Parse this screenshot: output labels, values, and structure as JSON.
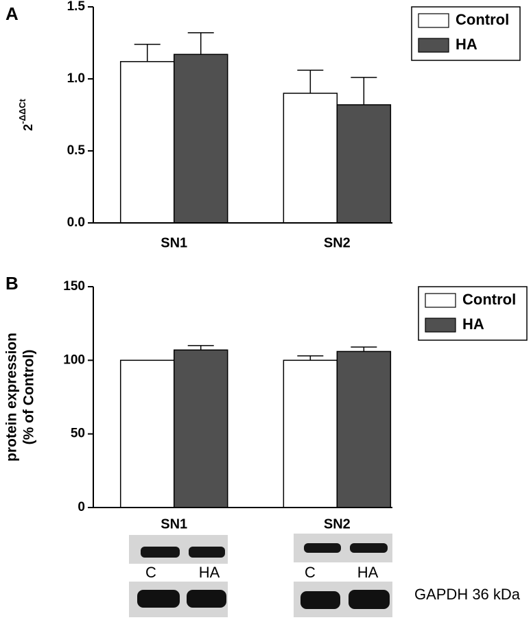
{
  "chart_data": [
    {
      "type": "bar",
      "panel": "A",
      "ylabel": "2",
      "ylabel_superscript": "-ΔΔCt",
      "categories": [
        "SN1",
        "SN2"
      ],
      "series": [
        {
          "name": "Control",
          "color": "#ffffff",
          "values": [
            1.12,
            0.9
          ],
          "errors": [
            0.12,
            0.16
          ]
        },
        {
          "name": "HA",
          "color": "#505050",
          "values": [
            1.17,
            0.82
          ],
          "errors": [
            0.15,
            0.19
          ]
        }
      ],
      "ylim": [
        0,
        1.5
      ],
      "yticks": [
        {
          "value": 0,
          "label": "0.0"
        },
        0.5,
        {
          "value": 1,
          "label": "1.0"
        },
        1.5
      ],
      "legend": "upper right"
    },
    {
      "type": "bar",
      "panel": "B",
      "ylabel": [
        "protein expression",
        "(% of Control)"
      ],
      "categories": [
        "SN1",
        "SN2"
      ],
      "series": [
        {
          "name": "Control",
          "color": "#ffffff",
          "values": [
            100,
            100
          ],
          "errors": [
            null,
            3
          ]
        },
        {
          "name": "HA",
          "color": "#505050",
          "values": [
            107,
            106
          ],
          "errors": [
            3,
            3
          ]
        }
      ],
      "ylim": [
        0,
        150
      ],
      "yticks": [
        0,
        50,
        100,
        150
      ],
      "legend": "upper right"
    }
  ],
  "blots": {
    "lanes": [
      "C",
      "HA",
      "C",
      "HA"
    ],
    "label": "GAPDH 36 kDa"
  }
}
